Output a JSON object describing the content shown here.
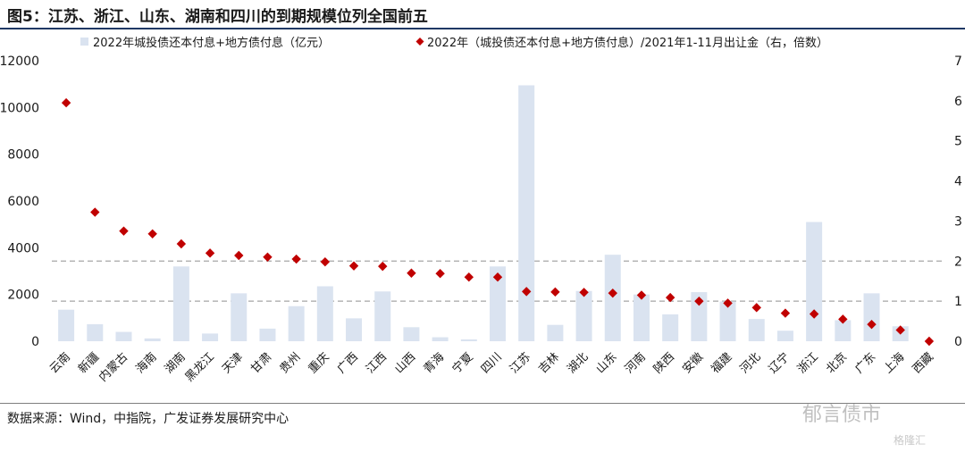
{
  "header": {
    "title": "图5：江苏、浙江、山东、湖南和四川的到期规模位列全国前五"
  },
  "footer": {
    "source": "数据来源：Wind，中指院，广发证券发展研究中心",
    "watermark": "郁言债市",
    "watermark_small": "格隆汇"
  },
  "colors": {
    "bar": "#dae3f0",
    "marker": "#c00000",
    "refline": "#a6a6a6",
    "title_rule": "#1f3864"
  },
  "chart_data": {
    "type": "bar",
    "categories": [
      "云南",
      "新疆",
      "内蒙古",
      "海南",
      "湖南",
      "黑龙江",
      "天津",
      "甘肃",
      "贵州",
      "重庆",
      "广西",
      "江西",
      "山西",
      "青海",
      "宁夏",
      "四川",
      "江苏",
      "吉林",
      "湖北",
      "山东",
      "河南",
      "陕西",
      "安徽",
      "福建",
      "河北",
      "辽宁",
      "浙江",
      "北京",
      "广东",
      "上海",
      "西藏"
    ],
    "series": [
      {
        "name": "2022年城投债还本付息+地方债付息（亿元）",
        "type": "bar",
        "axis": "left",
        "values": [
          1350,
          730,
          400,
          120,
          3200,
          330,
          2050,
          540,
          1500,
          2350,
          980,
          2130,
          600,
          170,
          80,
          3200,
          10950,
          700,
          2150,
          3700,
          2000,
          1150,
          2100,
          1700,
          950,
          450,
          5100,
          900,
          2050,
          640,
          0
        ]
      },
      {
        "name": "2022年（城投债还本付息+地方债付息）/2021年1-11月出让金（右，倍数）",
        "type": "scatter",
        "axis": "right",
        "values": [
          5.95,
          3.22,
          2.75,
          2.68,
          2.43,
          2.2,
          2.14,
          2.1,
          2.05,
          1.98,
          1.88,
          1.87,
          1.7,
          1.69,
          1.6,
          1.6,
          1.24,
          1.23,
          1.22,
          1.2,
          1.15,
          1.09,
          1.0,
          0.95,
          0.84,
          0.7,
          0.68,
          0.55,
          0.42,
          0.28,
          0.0
        ]
      }
    ],
    "reference_lines": [
      {
        "axis": "right",
        "value": 2.0
      },
      {
        "axis": "right",
        "value": 1.0
      }
    ],
    "left_axis": {
      "ylim": [
        0,
        12000
      ],
      "ticks": [
        "0",
        "2000",
        "4000",
        "6000",
        "8000",
        "10000",
        "12000"
      ]
    },
    "right_axis": {
      "ylim": [
        0,
        7
      ],
      "ticks": [
        "0",
        "1",
        "2",
        "3",
        "4",
        "5",
        "6",
        "7"
      ]
    },
    "legend_position": "top",
    "grid": false
  }
}
